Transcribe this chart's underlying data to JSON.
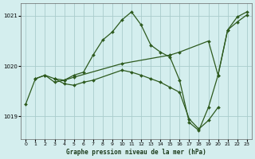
{
  "background_color": "#d4eeee",
  "grid_color": "#aacccc",
  "line_color": "#2d5a1e",
  "marker_color": "#2d5a1e",
  "title": "Graphe pression niveau de la mer (hPa)",
  "xlim": [
    -0.5,
    23.5
  ],
  "ylim": [
    1018.55,
    1021.25
  ],
  "yticks": [
    1019,
    1020,
    1021
  ],
  "xticks": [
    0,
    1,
    2,
    3,
    4,
    5,
    6,
    7,
    8,
    9,
    10,
    11,
    12,
    13,
    14,
    15,
    16,
    17,
    18,
    19,
    20,
    21,
    22,
    23
  ],
  "series": [
    {
      "x": [
        0,
        1,
        2,
        3,
        4,
        5,
        6,
        7,
        8,
        9,
        10,
        11,
        12,
        13,
        14,
        15,
        16,
        17,
        18,
        19,
        20,
        21,
        22,
        23
      ],
      "y": [
        1019.25,
        1019.75,
        1019.82,
        1019.68,
        1019.72,
        1019.82,
        1019.88,
        1020.22,
        1020.52,
        1020.68,
        1020.92,
        1021.08,
        1020.82,
        1020.42,
        1020.28,
        1020.18,
        1019.72,
        1018.88,
        1018.72,
        1019.18,
        1019.82,
        1020.72,
        1020.98,
        1021.08
      ]
    },
    {
      "x": [
        1,
        2,
        3,
        4,
        5,
        10,
        15,
        16,
        19,
        20,
        21,
        22,
        23
      ],
      "y": [
        1019.75,
        1019.82,
        1019.75,
        1019.72,
        1019.78,
        1020.05,
        1020.22,
        1020.28,
        1020.5,
        1019.82,
        1020.72,
        1020.88,
        1021.02
      ]
    },
    {
      "x": [
        3,
        4,
        5,
        6,
        7,
        10,
        11,
        12,
        13,
        14,
        15,
        16,
        17,
        18,
        19,
        20
      ],
      "y": [
        1019.75,
        1019.65,
        1019.62,
        1019.68,
        1019.72,
        1019.92,
        1019.88,
        1019.82,
        1019.75,
        1019.68,
        1019.58,
        1019.48,
        1018.95,
        1018.75,
        1018.92,
        1019.18
      ]
    }
  ]
}
